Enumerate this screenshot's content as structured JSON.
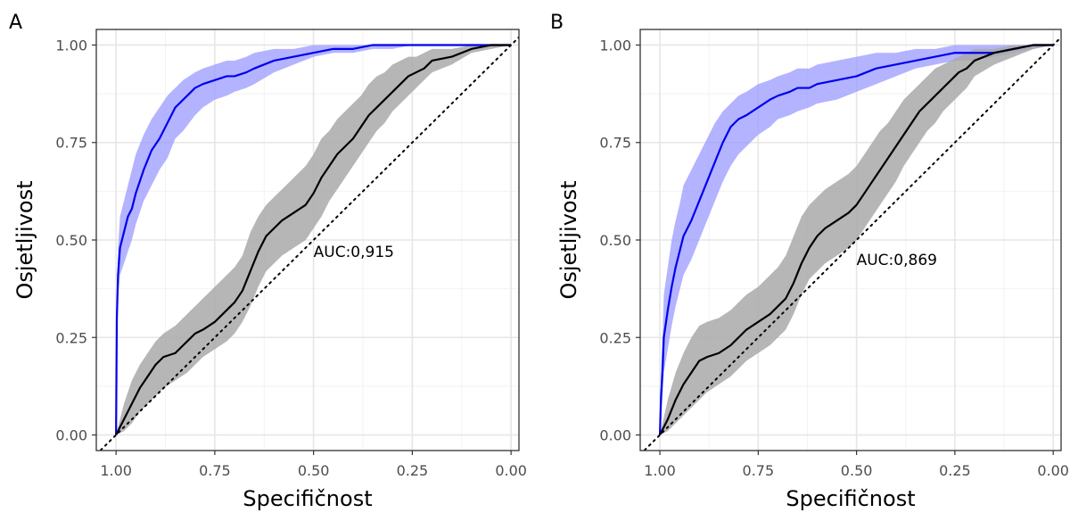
{
  "chart_data": [
    {
      "type": "line",
      "panel_label": "A",
      "xlabel": "Specifičnost",
      "ylabel": "Osjetljivost",
      "xlim": [
        1.05,
        -0.02
      ],
      "ylim": [
        -0.04,
        1.04
      ],
      "x_reversed": true,
      "x_ticks": [
        1.0,
        0.75,
        0.5,
        0.25,
        0.0
      ],
      "x_tick_labels": [
        "1.00",
        "0.75",
        "0.50",
        "0.25",
        "0.00"
      ],
      "y_ticks": [
        0.0,
        0.25,
        0.5,
        0.75,
        1.0
      ],
      "y_tick_labels": [
        "0.00",
        "0.25",
        "0.50",
        "0.75",
        "1.00"
      ],
      "grid": true,
      "annotation": {
        "text": "AUC:0,915",
        "x": 0.5,
        "y": 0.47
      },
      "reference_line": {
        "from": [
          1.0,
          0.0
        ],
        "to": [
          0.0,
          1.0
        ],
        "color": "#000000",
        "style": "dotted"
      },
      "series": [
        {
          "color": "#0000ee",
          "band_color": "#9999ff",
          "x": [
            1.0,
            0.998,
            0.995,
            0.99,
            0.98,
            0.97,
            0.96,
            0.95,
            0.93,
            0.91,
            0.89,
            0.87,
            0.85,
            0.83,
            0.8,
            0.78,
            0.75,
            0.72,
            0.7,
            0.67,
            0.65,
            0.6,
            0.55,
            0.5,
            0.45,
            0.4,
            0.35,
            0.3,
            0.25,
            0.2,
            0.1,
            0.0
          ],
          "y": [
            0.0,
            0.3,
            0.41,
            0.48,
            0.52,
            0.56,
            0.58,
            0.62,
            0.68,
            0.73,
            0.76,
            0.8,
            0.84,
            0.86,
            0.89,
            0.9,
            0.91,
            0.92,
            0.92,
            0.93,
            0.94,
            0.96,
            0.97,
            0.98,
            0.99,
            0.99,
            1.0,
            1.0,
            1.0,
            1.0,
            1.0,
            1.0
          ],
          "lower": [
            0.0,
            0.25,
            0.35,
            0.41,
            0.44,
            0.47,
            0.5,
            0.54,
            0.6,
            0.64,
            0.68,
            0.71,
            0.76,
            0.78,
            0.82,
            0.84,
            0.86,
            0.87,
            0.88,
            0.89,
            0.9,
            0.93,
            0.95,
            0.97,
            0.98,
            0.98,
            0.99,
            0.99,
            1.0,
            1.0,
            1.0,
            1.0
          ],
          "upper": [
            0.0,
            0.36,
            0.48,
            0.56,
            0.6,
            0.64,
            0.68,
            0.72,
            0.77,
            0.81,
            0.84,
            0.87,
            0.89,
            0.91,
            0.93,
            0.94,
            0.95,
            0.96,
            0.96,
            0.97,
            0.98,
            0.99,
            0.99,
            1.0,
            1.0,
            1.0,
            1.0,
            1.0,
            1.0,
            1.0,
            1.0,
            1.0
          ]
        },
        {
          "color": "#000000",
          "band_color": "#a9a9a9",
          "x": [
            1.0,
            0.98,
            0.96,
            0.94,
            0.92,
            0.9,
            0.88,
            0.85,
            0.82,
            0.8,
            0.78,
            0.75,
            0.72,
            0.7,
            0.68,
            0.66,
            0.64,
            0.62,
            0.6,
            0.58,
            0.55,
            0.52,
            0.5,
            0.48,
            0.46,
            0.44,
            0.42,
            0.4,
            0.38,
            0.36,
            0.34,
            0.32,
            0.3,
            0.28,
            0.26,
            0.24,
            0.22,
            0.2,
            0.15,
            0.1,
            0.05,
            0.0
          ],
          "y": [
            0.0,
            0.04,
            0.08,
            0.12,
            0.15,
            0.18,
            0.2,
            0.21,
            0.24,
            0.26,
            0.27,
            0.29,
            0.32,
            0.34,
            0.37,
            0.42,
            0.47,
            0.51,
            0.53,
            0.55,
            0.57,
            0.59,
            0.62,
            0.66,
            0.69,
            0.72,
            0.74,
            0.76,
            0.79,
            0.82,
            0.84,
            0.86,
            0.88,
            0.9,
            0.92,
            0.93,
            0.94,
            0.96,
            0.97,
            0.99,
            1.0,
            1.0
          ],
          "lower": [
            0.0,
            0.01,
            0.03,
            0.06,
            0.08,
            0.1,
            0.12,
            0.14,
            0.16,
            0.18,
            0.2,
            0.22,
            0.24,
            0.26,
            0.29,
            0.33,
            0.38,
            0.42,
            0.44,
            0.46,
            0.48,
            0.5,
            0.53,
            0.56,
            0.6,
            0.63,
            0.66,
            0.69,
            0.72,
            0.75,
            0.78,
            0.8,
            0.83,
            0.85,
            0.87,
            0.89,
            0.91,
            0.93,
            0.95,
            0.98,
            0.99,
            1.0
          ],
          "upper": [
            0.0,
            0.08,
            0.14,
            0.18,
            0.21,
            0.24,
            0.26,
            0.28,
            0.31,
            0.33,
            0.35,
            0.38,
            0.41,
            0.43,
            0.46,
            0.52,
            0.56,
            0.59,
            0.61,
            0.63,
            0.66,
            0.69,
            0.72,
            0.76,
            0.78,
            0.81,
            0.83,
            0.85,
            0.87,
            0.9,
            0.92,
            0.93,
            0.95,
            0.96,
            0.97,
            0.97,
            0.98,
            0.99,
            0.99,
            1.0,
            1.0,
            1.0
          ]
        }
      ]
    },
    {
      "type": "line",
      "panel_label": "B",
      "xlabel": "Specifičnost",
      "ylabel": "Osjetljivost",
      "xlim": [
        1.05,
        -0.02
      ],
      "ylim": [
        -0.04,
        1.04
      ],
      "x_reversed": true,
      "x_ticks": [
        1.0,
        0.75,
        0.5,
        0.25,
        0.0
      ],
      "x_tick_labels": [
        "1.00",
        "0.75",
        "0.50",
        "0.25",
        "0.00"
      ],
      "y_ticks": [
        0.0,
        0.25,
        0.5,
        0.75,
        1.0
      ],
      "y_tick_labels": [
        "0.00",
        "0.25",
        "0.50",
        "0.75",
        "1.00"
      ],
      "grid": true,
      "annotation": {
        "text": "AUC:0,869",
        "x": 0.5,
        "y": 0.45
      },
      "reference_line": {
        "from": [
          1.0,
          0.0
        ],
        "to": [
          0.0,
          1.0
        ],
        "color": "#000000",
        "style": "dotted"
      },
      "series": [
        {
          "color": "#0000ee",
          "band_color": "#9999ff",
          "x": [
            1.0,
            0.997,
            0.993,
            0.99,
            0.98,
            0.97,
            0.96,
            0.95,
            0.94,
            0.92,
            0.9,
            0.88,
            0.86,
            0.84,
            0.82,
            0.8,
            0.78,
            0.75,
            0.72,
            0.7,
            0.67,
            0.65,
            0.62,
            0.6,
            0.55,
            0.5,
            0.45,
            0.4,
            0.35,
            0.3,
            0.25,
            0.2,
            0.15,
            0.1,
            0.05,
            0.0
          ],
          "y": [
            0.0,
            0.1,
            0.17,
            0.25,
            0.32,
            0.38,
            0.43,
            0.47,
            0.51,
            0.55,
            0.6,
            0.65,
            0.7,
            0.75,
            0.79,
            0.81,
            0.82,
            0.84,
            0.86,
            0.87,
            0.88,
            0.89,
            0.89,
            0.9,
            0.91,
            0.92,
            0.94,
            0.95,
            0.96,
            0.97,
            0.98,
            0.98,
            0.98,
            0.99,
            1.0,
            1.0
          ],
          "lower": [
            0.0,
            0.05,
            0.1,
            0.16,
            0.22,
            0.28,
            0.33,
            0.37,
            0.41,
            0.45,
            0.5,
            0.55,
            0.6,
            0.65,
            0.69,
            0.72,
            0.74,
            0.77,
            0.79,
            0.81,
            0.82,
            0.83,
            0.84,
            0.85,
            0.86,
            0.88,
            0.9,
            0.92,
            0.94,
            0.95,
            0.96,
            0.96,
            0.97,
            0.98,
            0.99,
            1.0
          ],
          "upper": [
            0.0,
            0.17,
            0.26,
            0.36,
            0.43,
            0.5,
            0.55,
            0.59,
            0.64,
            0.68,
            0.72,
            0.76,
            0.8,
            0.83,
            0.85,
            0.87,
            0.88,
            0.9,
            0.91,
            0.92,
            0.93,
            0.94,
            0.94,
            0.95,
            0.96,
            0.97,
            0.98,
            0.98,
            0.99,
            0.99,
            1.0,
            1.0,
            1.0,
            1.0,
            1.0,
            1.0
          ]
        },
        {
          "color": "#000000",
          "band_color": "#a9a9a9",
          "x": [
            1.0,
            0.98,
            0.96,
            0.94,
            0.92,
            0.9,
            0.88,
            0.85,
            0.82,
            0.8,
            0.78,
            0.75,
            0.72,
            0.7,
            0.68,
            0.66,
            0.64,
            0.62,
            0.6,
            0.58,
            0.55,
            0.52,
            0.5,
            0.48,
            0.46,
            0.44,
            0.42,
            0.4,
            0.38,
            0.36,
            0.34,
            0.32,
            0.3,
            0.28,
            0.26,
            0.24,
            0.22,
            0.2,
            0.15,
            0.1,
            0.05,
            0.0
          ],
          "y": [
            0.0,
            0.04,
            0.09,
            0.13,
            0.16,
            0.19,
            0.2,
            0.21,
            0.23,
            0.25,
            0.27,
            0.29,
            0.31,
            0.33,
            0.35,
            0.39,
            0.44,
            0.48,
            0.51,
            0.53,
            0.55,
            0.57,
            0.59,
            0.62,
            0.65,
            0.68,
            0.71,
            0.74,
            0.77,
            0.8,
            0.83,
            0.85,
            0.87,
            0.89,
            0.91,
            0.93,
            0.94,
            0.96,
            0.98,
            0.99,
            1.0,
            1.0
          ],
          "lower": [
            0.0,
            0.01,
            0.03,
            0.05,
            0.07,
            0.09,
            0.11,
            0.13,
            0.15,
            0.17,
            0.19,
            0.21,
            0.23,
            0.25,
            0.27,
            0.31,
            0.36,
            0.4,
            0.42,
            0.44,
            0.46,
            0.48,
            0.5,
            0.53,
            0.56,
            0.59,
            0.62,
            0.65,
            0.69,
            0.72,
            0.75,
            0.78,
            0.8,
            0.83,
            0.85,
            0.87,
            0.89,
            0.92,
            0.95,
            0.97,
            0.99,
            1.0
          ],
          "upper": [
            0.0,
            0.09,
            0.16,
            0.21,
            0.25,
            0.28,
            0.29,
            0.3,
            0.32,
            0.34,
            0.36,
            0.38,
            0.41,
            0.43,
            0.46,
            0.51,
            0.56,
            0.59,
            0.61,
            0.63,
            0.65,
            0.67,
            0.69,
            0.72,
            0.75,
            0.78,
            0.8,
            0.83,
            0.86,
            0.88,
            0.9,
            0.92,
            0.94,
            0.95,
            0.96,
            0.97,
            0.98,
            0.99,
            0.99,
            1.0,
            1.0,
            1.0
          ]
        }
      ]
    }
  ]
}
